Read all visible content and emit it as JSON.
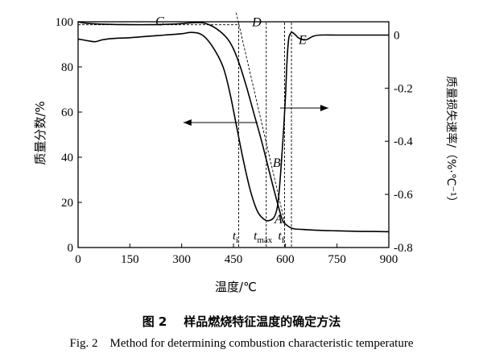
{
  "chart_data": {
    "type": "line",
    "xlabel": "温度/℃",
    "ylabel_left": "质量分数/%",
    "ylabel_right": "质量损失速率/（%·℃⁻¹）",
    "xlim": [
      0,
      900
    ],
    "ylim_left": [
      0,
      100
    ],
    "ylim_right": [
      -0.8,
      0.05
    ],
    "x_ticks": [
      0,
      150,
      300,
      450,
      600,
      750,
      900
    ],
    "x_tick_labels": [
      "0",
      "150",
      "300",
      "450",
      "600",
      "750",
      "900"
    ],
    "y_left_ticks": [
      0,
      20,
      40,
      60,
      80,
      100
    ],
    "y_left_tick_labels": [
      "0",
      "20",
      "40",
      "60",
      "80",
      "100"
    ],
    "y_right_ticks": [
      0,
      -0.2,
      -0.4,
      -0.6,
      -0.8
    ],
    "y_right_tick_labels": [
      "0",
      "-0.2",
      "-0.4",
      "-0.6",
      "-0.8"
    ],
    "grid": false,
    "series": [
      {
        "axis": "left",
        "x": [
          0,
          20,
          60,
          120,
          200,
          280,
          340,
          370,
          400,
          430,
          450,
          470,
          490,
          510,
          530,
          550,
          570,
          590,
          600,
          620,
          650,
          700,
          750,
          800,
          850,
          900
        ],
        "values": [
          100,
          99.4,
          99,
          98.8,
          98.7,
          99,
          99.6,
          99.2,
          97,
          93,
          88,
          80,
          70,
          59,
          48,
          36,
          24,
          13,
          10.5,
          8.5,
          8,
          7.6,
          7.4,
          7.2,
          7.1,
          7
        ]
      },
      {
        "axis": "right",
        "x": [
          0,
          10,
          30,
          50,
          70,
          100,
          150,
          200,
          250,
          300,
          330,
          360,
          390,
          420,
          440,
          460,
          480,
          500,
          520,
          540,
          555,
          570,
          580,
          590,
          600,
          605,
          610,
          615,
          620,
          630,
          640,
          660,
          680,
          700,
          750,
          800,
          850,
          900
        ],
        "values": [
          -0.015,
          -0.017,
          -0.022,
          -0.025,
          -0.018,
          -0.013,
          -0.01,
          -0.005,
          0,
          0.005,
          0.01,
          0,
          -0.045,
          -0.12,
          -0.22,
          -0.35,
          -0.48,
          -0.59,
          -0.665,
          -0.695,
          -0.698,
          -0.68,
          -0.62,
          -0.46,
          -0.25,
          -0.1,
          -0.015,
          0.005,
          0.01,
          0,
          -0.012,
          -0.018,
          -0.005,
          0,
          0,
          0,
          0,
          0
        ]
      }
    ],
    "point_labels": [
      {
        "text": "C",
        "x": 210,
        "y_left": 98.7
      },
      {
        "text": "D",
        "x": 490,
        "y_left": 98.4
      },
      {
        "text": "E",
        "x": 625,
        "y_left": 90.5
      },
      {
        "text": "B",
        "x": 550,
        "y_left": 36
      },
      {
        "text": "A",
        "x": 555,
        "y_left": 11
      }
    ],
    "vertical_markers": [
      {
        "x": 465,
        "label": "t",
        "sub": "i"
      },
      {
        "x": 545,
        "label": "t",
        "sub": "max"
      },
      {
        "x": 598,
        "label": "t",
        "sub": "f"
      },
      {
        "x": 618,
        "label": "",
        "sub": ""
      }
    ],
    "horizontal_marker": {
      "y_left": 98.7,
      "x_from": 0,
      "x_to": 465
    },
    "tangent_line": {
      "x1": 458,
      "y1": 104,
      "x2": 600,
      "y2": 10
    }
  },
  "caption": {
    "cn_label": "图 2",
    "cn_text": "样品燃烧特征温度的确定方法",
    "en_label": "Fig. 2",
    "en_text": "Method for determining combustion characteristic temperature"
  }
}
